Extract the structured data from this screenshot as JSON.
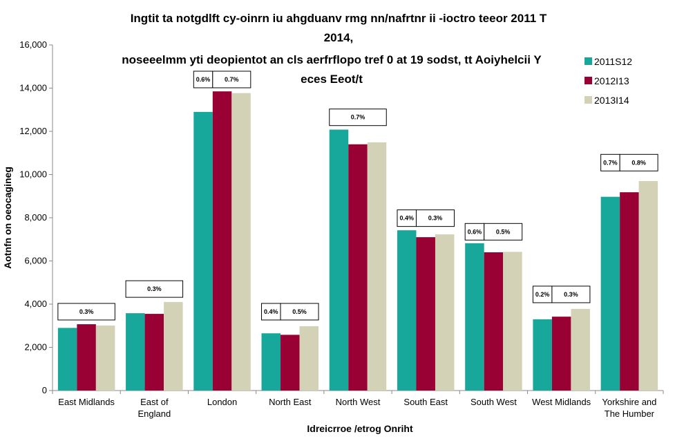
{
  "chart_data": {
    "type": "bar",
    "title_lines": [
      "Ingtit ta notgdlft cy-oinrn iu ahgduanv rmg nn/nafrtnr ii -ioctro teeor 2011 T",
      "2014,",
      "noseeelmm yti deopientot an cls aerfrflopo tref 0 at 19 sodst, tt Aoiyhelcii Y",
      "eces Eeot/t"
    ],
    "xlabel": "Idreicrroe /etrog Onriht",
    "ylabel": "Aotnfn on oeocagineg",
    "ylim": [
      0,
      16000
    ],
    "yticks": [
      "0",
      "2,000",
      "4,000",
      "6,000",
      "8,000",
      "10,000",
      "12,000",
      "14,000",
      "16,000"
    ],
    "ytick_values": [
      0,
      2000,
      4000,
      6000,
      8000,
      10000,
      12000,
      14000,
      16000
    ],
    "categories": [
      [
        "East Midlands"
      ],
      [
        "East of",
        "England"
      ],
      [
        "London"
      ],
      [
        "North East"
      ],
      [
        "North West"
      ],
      [
        "South East"
      ],
      [
        "South West"
      ],
      [
        "West Midlands"
      ],
      [
        "Yorkshire and",
        "The Humber"
      ]
    ],
    "series": [
      {
        "name": "2011S12",
        "color": "#17a79b",
        "values": [
          2900,
          3580,
          12900,
          2650,
          12080,
          7420,
          6820,
          3300,
          8970
        ]
      },
      {
        "name": "2012I13",
        "color": "#990033",
        "values": [
          3070,
          3550,
          13850,
          2580,
          11400,
          7100,
          6400,
          3420,
          9180
        ]
      },
      {
        "name": "2013I14",
        "color": "#d4d2b6",
        "values": [
          3010,
          4100,
          13770,
          2980,
          11490,
          7230,
          6420,
          3780,
          9700
        ]
      }
    ],
    "annotations": [
      {
        "category": 0,
        "kind": "span",
        "text": "0.3%",
        "y": 3650
      },
      {
        "category": 1,
        "kind": "span",
        "text": "0.3%",
        "y": 4700
      },
      {
        "category": 2,
        "kind": "split",
        "texts": [
          "0.6%",
          "0.7%"
        ],
        "y": 14400
      },
      {
        "category": 3,
        "kind": "split",
        "texts": [
          "0.4%",
          "0.5%"
        ],
        "y": 3650
      },
      {
        "category": 4,
        "kind": "span",
        "text": "0.7%",
        "y": 12650
      },
      {
        "category": 5,
        "kind": "split",
        "texts": [
          "0.4%",
          "0.3%"
        ],
        "y": 7980
      },
      {
        "category": 6,
        "kind": "split",
        "texts": [
          "0.6%",
          "0.5%"
        ],
        "y": 7350
      },
      {
        "category": 7,
        "kind": "split",
        "texts": [
          "0.2%",
          "0.3%"
        ],
        "y": 4450
      },
      {
        "category": 8,
        "kind": "split",
        "texts": [
          "0.7%",
          "0.8%"
        ],
        "y": 10550
      }
    ],
    "legend_position": "top-right",
    "grid": false
  }
}
